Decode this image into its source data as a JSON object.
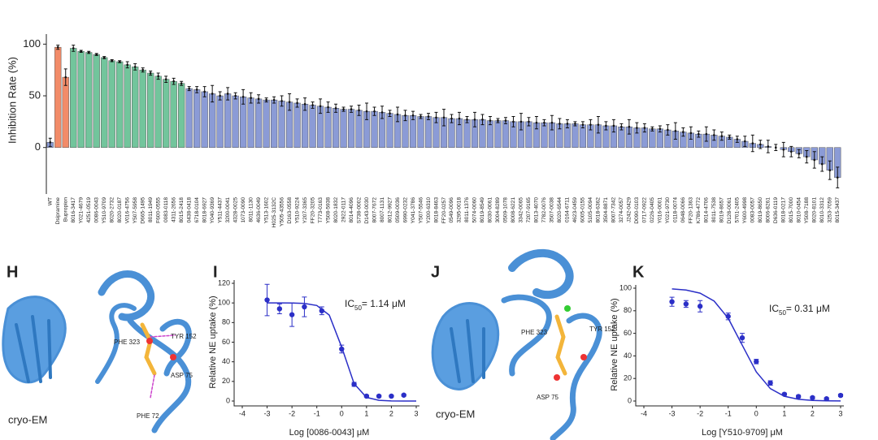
{
  "chart_data": [
    {
      "type": "bar",
      "ylabel": "Inhibition Rate (%)",
      "ylim": [
        -45,
        105
      ],
      "yticks": [
        0,
        50,
        100
      ],
      "categories": [
        "WT",
        "Dsipramine",
        "Bupropion",
        "8016-3417",
        "Y021-4679",
        "4251-0519",
        "0086-0043",
        "Y510-9709",
        "8020-2732",
        "8020-0187",
        "V016-4756",
        "Y507-5958",
        "D665-1495",
        "8011-1949",
        "F600-0555",
        "0083-0118",
        "4311-2656",
        "8015-2418",
        "0438-0418",
        "6718-0104",
        "8018-6927",
        "Y040-9369",
        "Y511-4437",
        "3200-0041",
        "4328-0025",
        "1073-0090",
        "8011-1130",
        "4636-0049",
        "Y513-1602",
        "H025-3132C",
        "Y505-43556",
        "D163-0558",
        "Y510-9224",
        "Y207-3365",
        "FF20-3205",
        "T773-0163",
        "Y508-5938",
        "8020-1832",
        "2922-0117",
        "8014-4096",
        "S738-0002",
        "D143-0030",
        "8007-7672",
        "8007-1131",
        "8012-9927",
        "0509-0036",
        "6990-0232",
        "Y041-3786",
        "Y507-5546",
        "Y200-6310",
        "8018-8463",
        "FF20-0257",
        "0549-0096",
        "3295-0018",
        "8011-1376",
        "5074-0060",
        "8019-8549",
        "8030-0061",
        "3004-8289",
        "0509-1078",
        "8008-6221",
        "3342-0065",
        "7207-9165",
        "8013-4070",
        "7782-0076",
        "3507-0038",
        "8020-6544",
        "0164-6711",
        "4623-0459",
        "6005-0155",
        "5105-0094",
        "8018-6362",
        "3504-8871",
        "8007-7342",
        "3274-0057",
        "J242-0429",
        "D090-0103",
        "0717-0922",
        "0226-0405",
        "Y016-0001",
        "Y021-9730",
        "0118-0074",
        "0648-0066",
        "FF20-1363",
        "K786-4772",
        "8014-4706",
        "8011-7538",
        "8019-8657",
        "D128-0061",
        "5701-2405",
        "Y600-4998",
        "0083-0057",
        "8019-8650",
        "8006-8261",
        "D636-0119",
        "8018-0217",
        "8015-7000",
        "8010-0454",
        "Y508-7188",
        "8020-8101",
        "8010-3312",
        "3253-7059",
        "8015-3437"
      ],
      "values": [
        5,
        97,
        68,
        96,
        93,
        92,
        90,
        87,
        84,
        83,
        80,
        78,
        75,
        72,
        69,
        66,
        64,
        62,
        57,
        56,
        54,
        52,
        50,
        52,
        50,
        49,
        48,
        47,
        46,
        46,
        45,
        44,
        43,
        42,
        41,
        40,
        39,
        38,
        37,
        37,
        36,
        35,
        35,
        34,
        33,
        32,
        31,
        31,
        30,
        30,
        29,
        29,
        28,
        28,
        27,
        27,
        27,
        26,
        26,
        26,
        25,
        25,
        25,
        24,
        24,
        24,
        23,
        23,
        23,
        22,
        22,
        22,
        21,
        21,
        20,
        20,
        19,
        19,
        18,
        18,
        17,
        16,
        15,
        14,
        13,
        13,
        12,
        11,
        10,
        8,
        6,
        4,
        3,
        1,
        0,
        -2,
        -4,
        -6,
        -9,
        -12,
        -16,
        -22,
        -29
      ],
      "errors": [
        4,
        2,
        8,
        3,
        1,
        1,
        1,
        1,
        1,
        1,
        3,
        3,
        2,
        2,
        3,
        3,
        3,
        2,
        2,
        3,
        5,
        8,
        4,
        6,
        3,
        7,
        5,
        4,
        2,
        3,
        5,
        8,
        4,
        6,
        3,
        7,
        5,
        4,
        2,
        3,
        5,
        8,
        4,
        6,
        3,
        7,
        5,
        4,
        2,
        3,
        5,
        8,
        4,
        6,
        3,
        7,
        5,
        4,
        2,
        3,
        5,
        8,
        4,
        6,
        3,
        7,
        5,
        4,
        2,
        3,
        5,
        8,
        4,
        6,
        3,
        7,
        5,
        4,
        2,
        3,
        5,
        8,
        4,
        6,
        3,
        7,
        5,
        4,
        2,
        3,
        5,
        8,
        4,
        6,
        3,
        7,
        5,
        4,
        6,
        8,
        7,
        9,
        10
      ],
      "colors": [
        "#8b9bd6",
        "#f28b68",
        "#f28b68",
        "#72c59c",
        "#72c59c",
        "#72c59c",
        "#72c59c",
        "#72c59c",
        "#72c59c",
        "#72c59c",
        "#72c59c",
        "#72c59c",
        "#72c59c",
        "#72c59c",
        "#72c59c",
        "#72c59c",
        "#72c59c",
        "#72c59c",
        "#8b9bd6",
        "#8b9bd6",
        "#8b9bd6",
        "#8b9bd6",
        "#8b9bd6",
        "#8b9bd6",
        "#8b9bd6",
        "#8b9bd6",
        "#8b9bd6",
        "#8b9bd6",
        "#8b9bd6",
        "#8b9bd6",
        "#8b9bd6",
        "#8b9bd6",
        "#8b9bd6",
        "#8b9bd6",
        "#8b9bd6",
        "#8b9bd6",
        "#8b9bd6",
        "#8b9bd6",
        "#8b9bd6",
        "#8b9bd6",
        "#8b9bd6",
        "#8b9bd6",
        "#8b9bd6",
        "#8b9bd6",
        "#8b9bd6",
        "#8b9bd6",
        "#8b9bd6",
        "#8b9bd6",
        "#8b9bd6",
        "#8b9bd6",
        "#8b9bd6",
        "#8b9bd6",
        "#8b9bd6",
        "#8b9bd6",
        "#8b9bd6",
        "#8b9bd6",
        "#8b9bd6",
        "#8b9bd6",
        "#8b9bd6",
        "#8b9bd6",
        "#8b9bd6",
        "#8b9bd6",
        "#8b9bd6",
        "#8b9bd6",
        "#8b9bd6",
        "#8b9bd6",
        "#8b9bd6",
        "#8b9bd6",
        "#8b9bd6",
        "#8b9bd6",
        "#8b9bd6",
        "#8b9bd6",
        "#8b9bd6",
        "#8b9bd6",
        "#8b9bd6",
        "#8b9bd6",
        "#8b9bd6",
        "#8b9bd6",
        "#8b9bd6",
        "#8b9bd6",
        "#8b9bd6",
        "#8b9bd6",
        "#8b9bd6",
        "#8b9bd6",
        "#8b9bd6",
        "#8b9bd6",
        "#8b9bd6",
        "#8b9bd6",
        "#8b9bd6",
        "#8b9bd6",
        "#8b9bd6",
        "#8b9bd6",
        "#8b9bd6",
        "#8b9bd6",
        "#8b9bd6",
        "#8b9bd6",
        "#8b9bd6",
        "#8b9bd6",
        "#8b9bd6",
        "#8b9bd6",
        "#8b9bd6",
        "#8b9bd6",
        "#8b9bd6"
      ]
    },
    {
      "type": "dose_response",
      "panel": "I",
      "xlabel": "Log [0086-0043] μM",
      "ylabel": "Relative NE uptake (%)",
      "annotation": {
        "text": "IC",
        "sub": "50",
        "rest": "= 1.14 μM"
      },
      "xlim": [
        -4,
        3
      ],
      "xticks": [
        -4,
        -3,
        -2,
        -1,
        0,
        1,
        2,
        3
      ],
      "ylim": [
        0,
        120
      ],
      "yticks": [
        0,
        20,
        40,
        60,
        80,
        100,
        120
      ],
      "color": "#2b2fc7",
      "x": [
        -3,
        -2.5,
        -2,
        -1.5,
        -0.8,
        0,
        0.5,
        1,
        1.5,
        2,
        2.5
      ],
      "values": [
        103,
        94,
        88,
        96,
        92,
        53,
        17,
        5,
        5,
        5,
        6
      ],
      "errors": [
        16,
        5,
        12,
        10,
        4,
        4,
        2,
        1,
        1,
        1,
        1
      ],
      "curve_x": [
        -3,
        -2.5,
        -2,
        -1.5,
        -1,
        -0.5,
        0,
        0.5,
        1,
        1.5,
        2,
        2.5,
        3
      ],
      "curve_y": [
        100,
        100,
        99.9,
        99.5,
        97.4,
        87.6,
        55,
        17.7,
        3.7,
        0.7,
        0.1,
        0,
        0
      ]
    },
    {
      "type": "dose_response",
      "panel": "K",
      "xlabel": "Log [Y510-9709] μM",
      "ylabel": "Relative NE uptake (%)",
      "annotation": {
        "text": "IC",
        "sub": "50",
        "rest": "= 0.31 μM"
      },
      "xlim": [
        -4,
        3
      ],
      "xticks": [
        -4,
        -3,
        -2,
        -1,
        0,
        1,
        2,
        3
      ],
      "ylim": [
        0,
        100
      ],
      "yticks": [
        0,
        20,
        40,
        60,
        80,
        100
      ],
      "color": "#2b2fc7",
      "x": [
        -3,
        -2.5,
        -2,
        -1,
        -0.5,
        0,
        0.5,
        1,
        1.5,
        2,
        2.5,
        3
      ],
      "values": [
        88,
        86,
        84,
        75,
        56,
        35,
        16,
        6,
        4,
        3,
        2,
        5
      ],
      "errors": [
        4,
        3,
        5,
        3,
        4,
        2,
        2,
        1,
        1,
        1,
        1,
        1
      ],
      "curve_x": [
        -3,
        -2.5,
        -2,
        -1.5,
        -1,
        -0.5,
        0,
        0.5,
        1,
        1.5,
        2,
        2.5,
        3
      ],
      "curve_y": [
        99.4,
        98.4,
        95.6,
        88.6,
        73.4,
        49.5,
        25.8,
        11,
        4.2,
        1.5,
        0.5,
        0.2,
        0.1
      ]
    }
  ],
  "structures": {
    "H": {
      "panel": "H",
      "method": "cryo-EM",
      "residues": [
        "PHE 323",
        "TYR 152",
        "ASP 75",
        "PHE 72"
      ]
    },
    "J": {
      "panel": "J",
      "method": "cryo-EM",
      "residues": [
        "PHE 323",
        "TYR 152",
        "ASP 75"
      ]
    }
  }
}
